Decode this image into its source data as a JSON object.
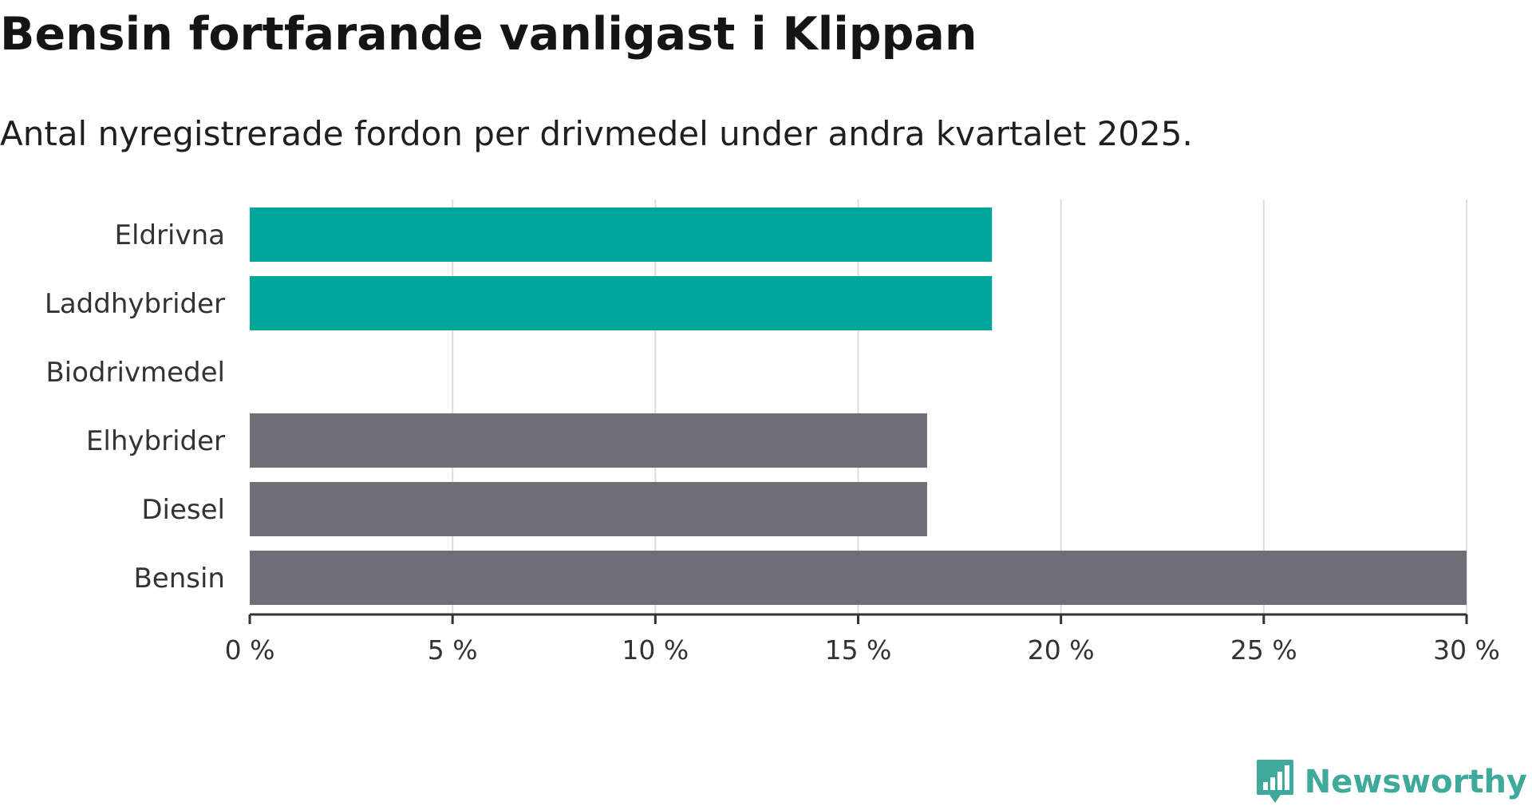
{
  "header": {
    "title": "Bensin fortfarande vanligast i Klippan",
    "subtitle": "Antal nyregistrerade fordon per drivmedel under andra kvartalet 2025."
  },
  "brand": {
    "name": "Newsworthy",
    "logo_icon": "bar-chart-speech-bubble-icon",
    "color": "#3fa99b"
  },
  "colors": {
    "highlight": "#00a59b",
    "default": "#6f6e77",
    "grid": "#dddddd",
    "axis": "#333333"
  },
  "chart_data": {
    "type": "bar",
    "orientation": "horizontal",
    "categories": [
      "Eldrivna",
      "Laddhybrider",
      "Biodrivmedel",
      "Elhybrider",
      "Diesel",
      "Bensin"
    ],
    "values": [
      18.3,
      18.3,
      0,
      16.7,
      16.7,
      30.0
    ],
    "highlighted": [
      true,
      true,
      true,
      false,
      false,
      false
    ],
    "xlim": [
      0,
      30
    ],
    "xticks": [
      0,
      5,
      10,
      15,
      20,
      25,
      30
    ],
    "tick_labels": [
      "0 %",
      "5 %",
      "10 %",
      "15 %",
      "20 %",
      "25 %",
      "30 %"
    ],
    "grid": true,
    "title": "Bensin fortfarande vanligast i Klippan",
    "subtitle": "Antal nyregistrerade fordon per drivmedel under andra kvartalet 2025."
  }
}
